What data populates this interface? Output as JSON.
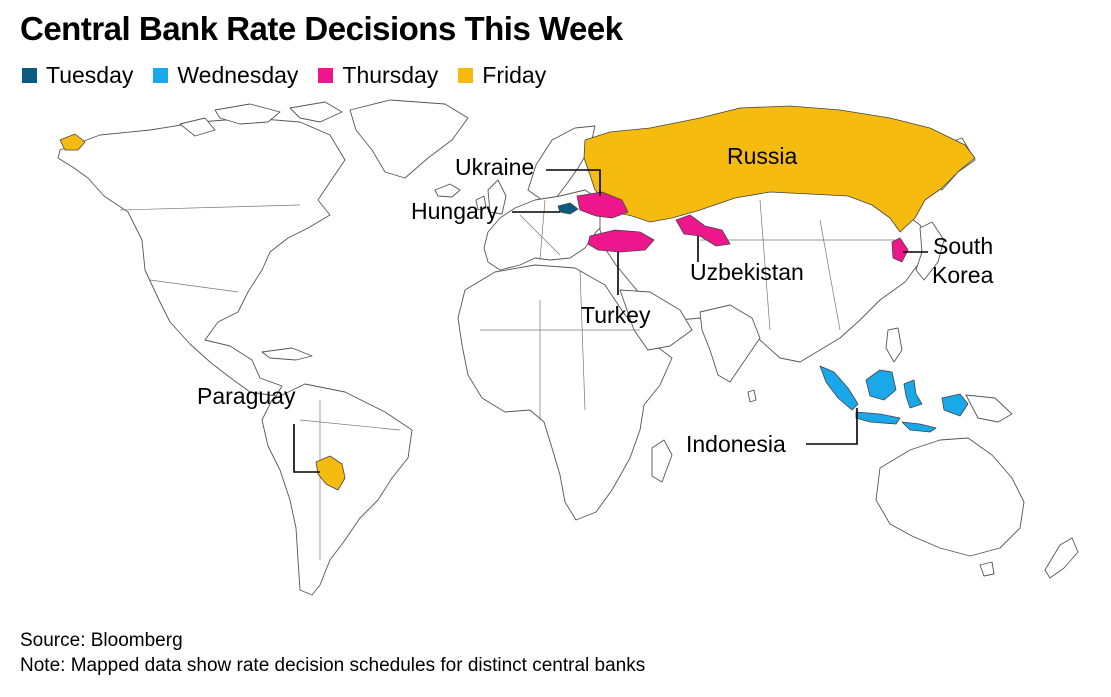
{
  "title": "Central Bank Rate Decisions This Week",
  "legend": [
    {
      "label": "Tuesday",
      "color": "#0d5a80"
    },
    {
      "label": "Wednesday",
      "color": "#1aa8ea"
    },
    {
      "label": "Thursday",
      "color": "#ee168d"
    },
    {
      "label": "Friday",
      "color": "#f6bb0f"
    }
  ],
  "countries": [
    {
      "name": "Hungary",
      "day": "Tuesday"
    },
    {
      "name": "Indonesia",
      "day": "Wednesday"
    },
    {
      "name": "Ukraine",
      "day": "Thursday"
    },
    {
      "name": "Turkey",
      "day": "Thursday"
    },
    {
      "name": "Uzbekistan",
      "day": "Thursday"
    },
    {
      "name": "South Korea",
      "day": "Thursday"
    },
    {
      "name": "Russia",
      "day": "Friday"
    },
    {
      "name": "Paraguay",
      "day": "Friday"
    }
  ],
  "labels": {
    "russia": "Russia",
    "ukraine": "Ukraine",
    "hungary": "Hungary",
    "turkey": "Turkey",
    "uzbekistan": "Uzbekistan",
    "south_korea_line1": "South",
    "south_korea_line2": "Korea",
    "indonesia": "Indonesia",
    "paraguay": "Paraguay"
  },
  "footer": {
    "source": "Source: Bloomberg",
    "note": "Note: Mapped data show rate decision schedules for distinct central banks"
  }
}
